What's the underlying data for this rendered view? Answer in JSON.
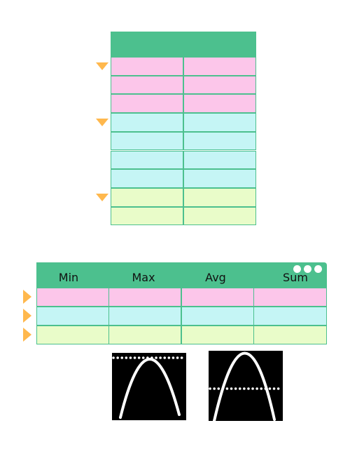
{
  "colors": {
    "header": "#4cc08e",
    "group1": "#fcc6ea",
    "group2": "#c5f5f5",
    "group3": "#e9fcc9",
    "marker": "#ffb84d",
    "thumb_bg": "#000000",
    "curve": "#ffffff"
  },
  "vertical_table": {
    "groups": [
      {
        "name": "group1",
        "rows": 3
      },
      {
        "name": "group2",
        "rows": 4
      },
      {
        "name": "group3",
        "rows": 2
      }
    ],
    "markers": [
      "triangle-down-icon",
      "triangle-down-icon",
      "triangle-down-icon"
    ]
  },
  "horizontal_table": {
    "columns": [
      "Min",
      "Max",
      "Avg",
      "Sum"
    ],
    "rows": [
      "group1",
      "group2",
      "group3"
    ],
    "markers": [
      "triangle-right-icon",
      "triangle-right-icon",
      "triangle-right-icon"
    ],
    "menu_icon": "more-dots-icon"
  },
  "thumbnails": [
    {
      "name": "parabola-line-at-max",
      "reference_line": "max"
    },
    {
      "name": "parabola-line-at-avg",
      "reference_line": "avg"
    }
  ]
}
